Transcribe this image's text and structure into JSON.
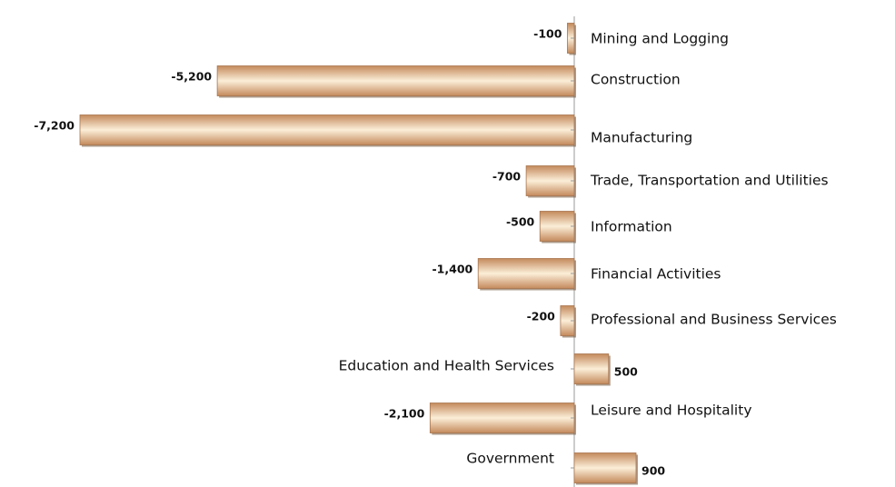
{
  "chart_data": {
    "type": "bar",
    "orientation": "horizontal",
    "categories": [
      "Mining and Logging",
      "Construction",
      "Manufacturing",
      "Trade, Transportation and Utilities",
      "Information",
      "Financial Activities",
      "Professional and Business Services",
      "Education and Health Services",
      "Leisure and Hospitality",
      "Government"
    ],
    "values": [
      -100,
      -5200,
      -7200,
      -700,
      -500,
      -1400,
      -200,
      500,
      -2100,
      900
    ],
    "value_labels": [
      "-100",
      "-5,200",
      "-7,200",
      "-700",
      "-500",
      "-1,400",
      "-200",
      "500",
      "-2,100",
      "900"
    ],
    "color": "#c48a5c"
  }
}
